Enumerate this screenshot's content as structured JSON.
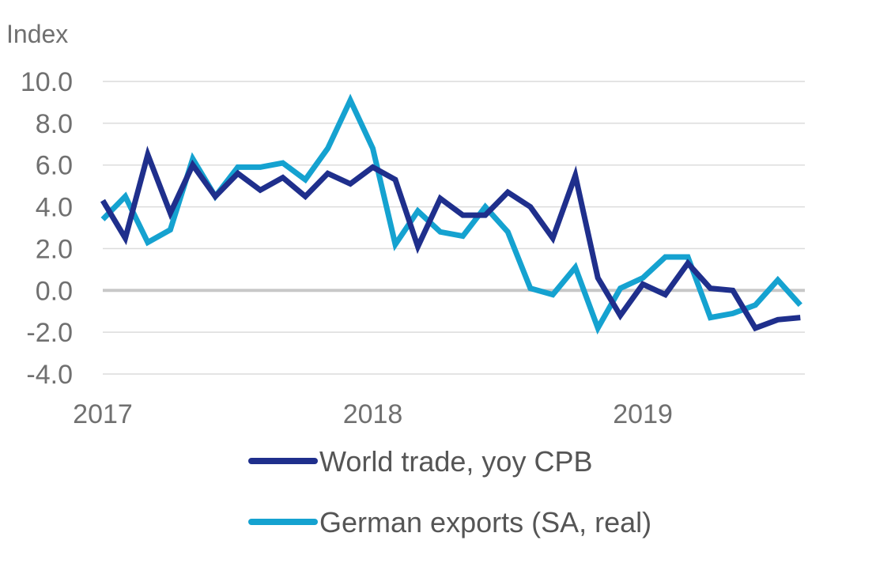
{
  "chart_data": {
    "type": "line",
    "title": "",
    "xlabel": "",
    "ylabel": "Index",
    "ylim": [
      -4.0,
      10.0
    ],
    "yticks": [
      "10.0",
      "8.0",
      "6.0",
      "4.0",
      "2.0",
      "0.0",
      "-2.0",
      "-4.0"
    ],
    "xticks": [
      "2017",
      "2018",
      "2019"
    ],
    "x_start_year": 2017,
    "x_months": 32,
    "grid": true,
    "legend_position": "bottom",
    "series": [
      {
        "name": "World trade, yoy CPB",
        "color": "#1f2f8c",
        "values": [
          4.3,
          2.5,
          6.5,
          3.7,
          6.0,
          4.5,
          5.6,
          4.8,
          5.4,
          4.5,
          5.6,
          5.1,
          5.9,
          5.3,
          2.1,
          4.4,
          3.6,
          3.6,
          4.7,
          4.0,
          2.5,
          5.5,
          0.6,
          -1.2,
          0.3,
          -0.2,
          1.3,
          0.1,
          0.0,
          -1.8,
          -1.4,
          -1.3
        ]
      },
      {
        "name": "German exports (SA, real)",
        "color": "#15a2d0",
        "values": [
          3.4,
          4.5,
          2.3,
          2.9,
          6.3,
          4.5,
          5.9,
          5.9,
          6.1,
          5.3,
          6.8,
          9.1,
          6.8,
          2.2,
          3.8,
          2.8,
          2.6,
          4.0,
          2.8,
          0.1,
          -0.2,
          1.1,
          -1.8,
          0.1,
          0.6,
          1.6,
          1.6,
          -1.3,
          -1.1,
          -0.7,
          0.5,
          -0.7
        ]
      }
    ]
  }
}
